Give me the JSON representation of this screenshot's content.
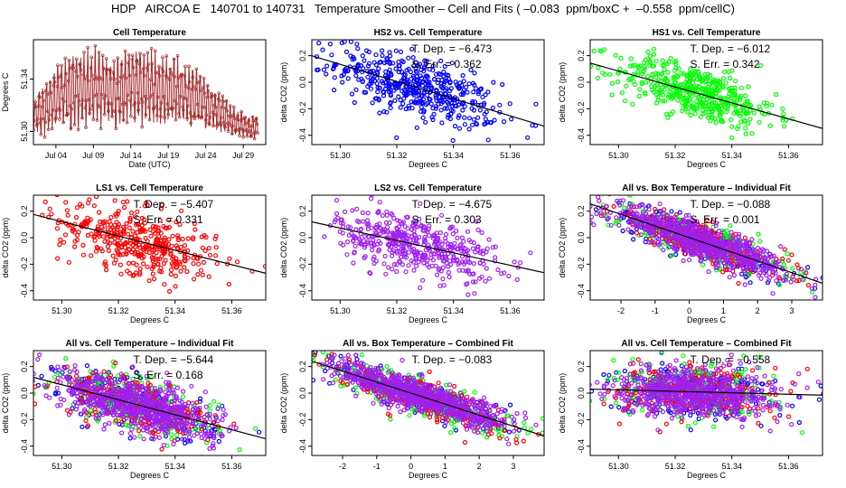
{
  "figure": {
    "title": "HDP   AIRCOA E   140701 to 140731   Temperature Smoother – Cell and Fits ( –0.083  ppm/boxC +  –0.558  ppm/cellC)"
  },
  "colors": {
    "HS2": "#0000ff",
    "HS1": "#00ff00",
    "LS1": "#ff0000",
    "LS2": "#a020f0",
    "cell": "#a52a2a",
    "fit": "#000000"
  },
  "chart_data": [
    {
      "type": "line",
      "title": "Cell Temperature",
      "xlabel": "Date (UTC)",
      "ylabel": "Degrees C",
      "x_ticks": [
        "Jul 04",
        "Jul 09",
        "Jul 14",
        "Jul 19",
        "Jul 24",
        "Jul 29"
      ],
      "x_tick_days": [
        4,
        9,
        14,
        19,
        24,
        29
      ],
      "xlim": [
        1,
        32
      ],
      "ylim": [
        51.29,
        51.37
      ],
      "y_ticks": [
        51.3,
        51.34
      ],
      "series": [
        {
          "name": "cell",
          "color": "#a52a2a",
          "x": [
            1,
            2,
            3,
            4,
            5,
            6,
            7,
            8,
            9,
            10,
            11,
            12,
            13,
            14,
            15,
            16,
            17,
            18,
            19,
            20,
            21,
            22,
            23,
            24,
            25,
            26,
            27,
            28,
            29,
            30,
            31
          ],
          "min": [
            51.304,
            51.3,
            51.302,
            51.305,
            51.31,
            51.305,
            51.308,
            51.31,
            51.312,
            51.308,
            51.31,
            51.307,
            51.311,
            51.313,
            51.31,
            51.312,
            51.31,
            51.308,
            51.312,
            51.31,
            51.31,
            51.307,
            51.309,
            51.305,
            51.303,
            51.302,
            51.3,
            51.299,
            51.296,
            51.294,
            51.298
          ],
          "max": [
            51.32,
            51.33,
            51.336,
            51.345,
            51.35,
            51.352,
            51.357,
            51.36,
            51.358,
            51.356,
            51.352,
            51.35,
            51.356,
            51.36,
            51.358,
            51.355,
            51.356,
            51.353,
            51.35,
            51.352,
            51.348,
            51.344,
            51.343,
            51.336,
            51.33,
            51.328,
            51.32,
            51.315,
            51.312,
            51.31,
            51.312
          ]
        }
      ]
    },
    {
      "type": "scatter",
      "title": "HS2 vs. Cell Temperature",
      "xlabel": "Degrees C",
      "ylabel": "delta CO2 (ppm)",
      "xlim": [
        51.29,
        51.372
      ],
      "ylim": [
        -0.47,
        0.32
      ],
      "x_ticks": [
        51.3,
        51.32,
        51.34,
        51.36
      ],
      "y_ticks": [
        -0.4,
        -0.2,
        0.0,
        0.2
      ],
      "series": [
        {
          "name": "HS2",
          "color": "#0000ff",
          "n": 480,
          "x_center": 51.327,
          "x_spread": 0.014,
          "y_spread": 0.11
        }
      ],
      "fit": {
        "slope": -6.473,
        "intercept": 332.2
      },
      "annotations": [
        "T. Dep. =  −6.473",
        "S. Err. =  0.362"
      ]
    },
    {
      "type": "scatter",
      "title": "HS1 vs. Cell Temperature",
      "xlabel": "Degrees C",
      "ylabel": "delta CO2 (ppm)",
      "xlim": [
        51.29,
        51.372
      ],
      "ylim": [
        -0.47,
        0.32
      ],
      "x_ticks": [
        51.3,
        51.32,
        51.34,
        51.36
      ],
      "y_ticks": [
        -0.4,
        -0.2,
        0.0,
        0.2
      ],
      "series": [
        {
          "name": "HS1",
          "color": "#00ff00",
          "n": 480,
          "x_center": 51.327,
          "x_spread": 0.014,
          "y_spread": 0.1
        }
      ],
      "fit": {
        "slope": -6.012,
        "intercept": 308.5
      },
      "annotations": [
        "T. Dep. =  −6.012",
        "S. Err. =  0.342"
      ]
    },
    {
      "type": "scatter",
      "title": "LS1 vs. Cell Temperature",
      "xlabel": "Degrees C",
      "ylabel": "delta CO2 (ppm)",
      "xlim": [
        51.29,
        51.372
      ],
      "ylim": [
        -0.47,
        0.32
      ],
      "x_ticks": [
        51.3,
        51.32,
        51.34,
        51.36
      ],
      "y_ticks": [
        -0.4,
        -0.2,
        0.0,
        0.2
      ],
      "series": [
        {
          "name": "LS1",
          "color": "#ff0000",
          "n": 420,
          "x_center": 51.327,
          "x_spread": 0.014,
          "y_spread": 0.12
        }
      ],
      "fit": {
        "slope": -5.407,
        "intercept": 277.5
      },
      "annotations": [
        "T. Dep. =  −5.407",
        "S. Err. =  0.331"
      ]
    },
    {
      "type": "scatter",
      "title": "LS2 vs. Cell Temperature",
      "xlabel": "Degrees C",
      "ylabel": "delta CO2 (ppm)",
      "xlim": [
        51.29,
        51.372
      ],
      "ylim": [
        -0.47,
        0.32
      ],
      "x_ticks": [
        51.3,
        51.32,
        51.34,
        51.36
      ],
      "y_ticks": [
        -0.4,
        -0.2,
        0.0,
        0.2
      ],
      "series": [
        {
          "name": "LS2",
          "color": "#a020f0",
          "n": 460,
          "x_center": 51.327,
          "x_spread": 0.014,
          "y_spread": 0.11
        }
      ],
      "fit": {
        "slope": -4.675,
        "intercept": 239.9
      },
      "annotations": [
        "T. Dep. =  −4.675",
        "S. Err. =  0.303"
      ]
    },
    {
      "type": "scatter",
      "title": "All vs. Box Temperature – Individual Fit",
      "xlabel": "Degrees C",
      "ylabel": "delta CO2 (ppm)",
      "xlim": [
        -2.9,
        3.9
      ],
      "ylim": [
        -0.47,
        0.32
      ],
      "x_ticks": [
        -2,
        -1,
        0,
        1,
        2,
        3
      ],
      "y_ticks": [
        -0.4,
        -0.2,
        0.0,
        0.2
      ],
      "series": [
        {
          "name": "HS2",
          "color": "#0000ff",
          "n": 260,
          "x_center": 0.3,
          "x_spread": 1.3,
          "y_spread": 0.07
        },
        {
          "name": "HS1",
          "color": "#00ff00",
          "n": 260,
          "x_center": 0.3,
          "x_spread": 1.3,
          "y_spread": 0.07
        },
        {
          "name": "LS1",
          "color": "#ff0000",
          "n": 260,
          "x_center": 0.3,
          "x_spread": 1.3,
          "y_spread": 0.07
        },
        {
          "name": "LS2",
          "color": "#a020f0",
          "n": 700,
          "x_center": 0.3,
          "x_spread": 1.3,
          "y_spread": 0.06
        }
      ],
      "fit": {
        "slope": -0.088,
        "intercept": 0.0
      },
      "annotations": [
        "T. Dep. =  −0.088",
        "S. Err. =  0.001"
      ]
    },
    {
      "type": "scatter",
      "title": "All vs. Cell Temperature – Individual Fit",
      "xlabel": "Degrees C",
      "ylabel": "delta CO2 (ppm)",
      "xlim": [
        51.29,
        51.372
      ],
      "ylim": [
        -0.47,
        0.32
      ],
      "x_ticks": [
        51.3,
        51.32,
        51.34,
        51.36
      ],
      "y_ticks": [
        -0.4,
        -0.2,
        0.0,
        0.2
      ],
      "series": [
        {
          "name": "HS2",
          "color": "#0000ff",
          "n": 220,
          "x_center": 51.327,
          "x_spread": 0.014,
          "y_spread": 0.1
        },
        {
          "name": "HS1",
          "color": "#00ff00",
          "n": 220,
          "x_center": 51.327,
          "x_spread": 0.014,
          "y_spread": 0.1
        },
        {
          "name": "LS1",
          "color": "#ff0000",
          "n": 220,
          "x_center": 51.327,
          "x_spread": 0.014,
          "y_spread": 0.1
        },
        {
          "name": "LS2",
          "color": "#a020f0",
          "n": 650,
          "x_center": 51.327,
          "x_spread": 0.014,
          "y_spread": 0.09
        }
      ],
      "fit": {
        "slope": -5.644,
        "intercept": 289.6
      },
      "annotations": [
        "T. Dep. =  −5.644",
        "S. Err. =  0.168"
      ]
    },
    {
      "type": "scatter",
      "title": "All vs. Box Temperature – Combined Fit",
      "xlabel": "Degrees C",
      "ylabel": "delta CO2 (ppm)",
      "xlim": [
        -2.9,
        3.9
      ],
      "ylim": [
        -0.47,
        0.32
      ],
      "x_ticks": [
        -2,
        -1,
        0,
        1,
        2,
        3
      ],
      "y_ticks": [
        -0.4,
        -0.2,
        0.0,
        0.2
      ],
      "series": [
        {
          "name": "HS2",
          "color": "#0000ff",
          "n": 240,
          "x_center": 0.3,
          "x_spread": 1.3,
          "y_spread": 0.07
        },
        {
          "name": "HS1",
          "color": "#00ff00",
          "n": 240,
          "x_center": 0.3,
          "x_spread": 1.3,
          "y_spread": 0.07
        },
        {
          "name": "LS1",
          "color": "#ff0000",
          "n": 240,
          "x_center": 0.3,
          "x_spread": 1.3,
          "y_spread": 0.07
        },
        {
          "name": "LS2",
          "color": "#a020f0",
          "n": 700,
          "x_center": 0.3,
          "x_spread": 1.3,
          "y_spread": 0.06
        }
      ],
      "fit": {
        "slope": -0.083,
        "intercept": 0.0
      },
      "annotations": [
        "T. Dep. =  −0.083"
      ]
    },
    {
      "type": "scatter",
      "title": "All vs. Cell Temperature – Combined Fit",
      "xlabel": "Degrees C",
      "ylabel": "delta CO2 (ppm)",
      "xlim": [
        51.29,
        51.372
      ],
      "ylim": [
        -0.47,
        0.32
      ],
      "x_ticks": [
        51.3,
        51.32,
        51.34,
        51.36
      ],
      "y_ticks": [
        -0.4,
        -0.2,
        0.0,
        0.2
      ],
      "series": [
        {
          "name": "HS2",
          "color": "#0000ff",
          "n": 220,
          "x_center": 51.327,
          "x_spread": 0.014,
          "y_spread": 0.1
        },
        {
          "name": "HS1",
          "color": "#00ff00",
          "n": 220,
          "x_center": 51.327,
          "x_spread": 0.014,
          "y_spread": 0.1
        },
        {
          "name": "LS1",
          "color": "#ff0000",
          "n": 220,
          "x_center": 51.327,
          "x_spread": 0.014,
          "y_spread": 0.1
        },
        {
          "name": "LS2",
          "color": "#a020f0",
          "n": 650,
          "x_center": 51.327,
          "x_spread": 0.014,
          "y_spread": 0.09
        }
      ],
      "fit": {
        "slope": -0.558,
        "intercept": 28.65
      },
      "annotations": [
        "T. Dep. =  −0.558"
      ]
    }
  ]
}
